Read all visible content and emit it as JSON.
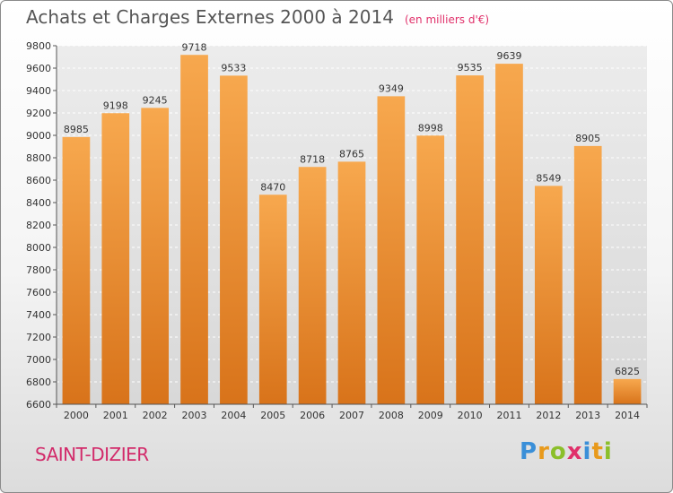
{
  "chart_data": {
    "type": "bar",
    "title": "Achats et Charges Externes 2000 à 2014",
    "subtitle": "(en milliers d'€)",
    "categories": [
      "2000",
      "2001",
      "2002",
      "2003",
      "2004",
      "2005",
      "2006",
      "2007",
      "2008",
      "2009",
      "2010",
      "2011",
      "2012",
      "2013",
      "2014"
    ],
    "values": [
      8985,
      9198,
      9245,
      9718,
      9533,
      8470,
      8718,
      8765,
      9349,
      8998,
      9535,
      9639,
      8549,
      8905,
      6825
    ],
    "ylim": [
      6600,
      9800
    ],
    "yticks": [
      6600,
      6800,
      7000,
      7200,
      7400,
      7600,
      7800,
      8000,
      8200,
      8400,
      8600,
      8800,
      9000,
      9200,
      9400,
      9600,
      9800
    ],
    "xlabel": "",
    "ylabel": "",
    "grid": true,
    "bar_color": "#f09a3e"
  },
  "footer": {
    "city": "SAINT-DIZIER",
    "logo": {
      "p": "P",
      "r": "r",
      "o": "o",
      "x": "x",
      "i1": "i",
      "t": "t",
      "i2": "i"
    }
  }
}
